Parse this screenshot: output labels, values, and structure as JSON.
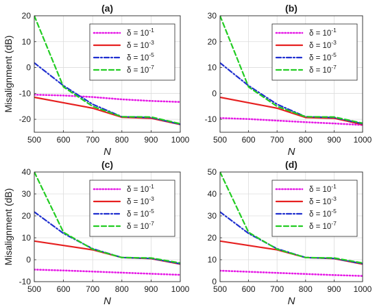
{
  "figure": {
    "legend_prefix": "δ = 10",
    "series_styles": [
      {
        "color": "#e619e6",
        "dash": "1.2 3",
        "width": 2.6
      },
      {
        "color": "#e62020",
        "dash": "",
        "width": 2.2
      },
      {
        "color": "#1f2fcf",
        "dash": "7 3 2 3",
        "width": 2.2
      },
      {
        "color": "#22cc22",
        "dash": "7 4",
        "width": 2.2
      }
    ]
  },
  "chart_data": [
    {
      "type": "line",
      "title": "(a)",
      "xlabel": "N",
      "ylabel": "Misalignment (dB)",
      "xlim": [
        500,
        1000
      ],
      "ylim": [
        -25,
        20
      ],
      "xticks": [
        500,
        600,
        700,
        800,
        900,
        1000
      ],
      "yticks": [
        -20,
        -10,
        0,
        10,
        20
      ],
      "grid": true,
      "legend": "top-right",
      "x": [
        500,
        600,
        700,
        800,
        900,
        1000
      ],
      "series": [
        {
          "name": "δ = 10^-1",
          "exponent": "-1",
          "values": [
            -10.5,
            -10.8,
            -11.4,
            -12.3,
            -12.9,
            -13.3
          ]
        },
        {
          "name": "δ = 10^-3",
          "exponent": "-3",
          "values": [
            -11.5,
            -13.6,
            -15.7,
            -19.2,
            -19.6,
            -22
          ]
        },
        {
          "name": "δ = 10^-5",
          "exponent": "-5",
          "values": [
            1.8,
            -7,
            -14.2,
            -19,
            -19.3,
            -21.9
          ]
        },
        {
          "name": "δ = 10^-7",
          "exponent": "-7",
          "values": [
            20,
            -7.5,
            -15,
            -19,
            -19.1,
            -21.7
          ]
        }
      ]
    },
    {
      "type": "line",
      "title": "(b)",
      "xlabel": "N",
      "ylabel": "",
      "xlim": [
        500,
        1000
      ],
      "ylim": [
        -15,
        30
      ],
      "xticks": [
        500,
        600,
        700,
        800,
        900,
        1000
      ],
      "yticks": [
        -10,
        0,
        10,
        20,
        30
      ],
      "grid": true,
      "legend": "top-right",
      "x": [
        500,
        600,
        700,
        800,
        900,
        1000
      ],
      "series": [
        {
          "name": "δ = 10^-1",
          "exponent": "-1",
          "values": [
            -9.5,
            -9.9,
            -10.5,
            -11.1,
            -11.6,
            -12.2
          ]
        },
        {
          "name": "δ = 10^-3",
          "exponent": "-3",
          "values": [
            -1.5,
            -3.6,
            -5.7,
            -9.3,
            -9.6,
            -12
          ]
        },
        {
          "name": "δ = 10^-5",
          "exponent": "-5",
          "values": [
            11.8,
            3,
            -4.2,
            -9,
            -9.3,
            -11.7
          ]
        },
        {
          "name": "δ = 10^-7",
          "exponent": "-7",
          "values": [
            30,
            2.5,
            -5,
            -9,
            -9.1,
            -11.5
          ]
        }
      ]
    },
    {
      "type": "line",
      "title": "(c)",
      "xlabel": "N",
      "ylabel": "Misalignment (dB)",
      "xlim": [
        500,
        1000
      ],
      "ylim": [
        -10,
        40
      ],
      "xticks": [
        500,
        600,
        700,
        800,
        900,
        1000
      ],
      "yticks": [
        -10,
        0,
        10,
        20,
        30,
        40
      ],
      "grid": true,
      "legend": "top-right",
      "x": [
        500,
        600,
        700,
        800,
        900,
        1000
      ],
      "series": [
        {
          "name": "δ = 10^-1",
          "exponent": "-1",
          "values": [
            -4.5,
            -4.9,
            -5.4,
            -5.9,
            -6.4,
            -6.9
          ]
        },
        {
          "name": "δ = 10^-3",
          "exponent": "-3",
          "values": [
            8.5,
            6.5,
            4.5,
            1,
            0.5,
            -2
          ]
        },
        {
          "name": "δ = 10^-5",
          "exponent": "-5",
          "values": [
            21.8,
            12,
            5,
            1,
            0.6,
            -1.8
          ]
        },
        {
          "name": "δ = 10^-7",
          "exponent": "-7",
          "values": [
            40,
            12.5,
            4.8,
            1,
            0.8,
            -1.5
          ]
        }
      ]
    },
    {
      "type": "line",
      "title": "(d)",
      "xlabel": "N",
      "ylabel": "",
      "xlim": [
        500,
        1000
      ],
      "ylim": [
        0,
        50
      ],
      "xticks": [
        500,
        600,
        700,
        800,
        900,
        1000
      ],
      "yticks": [
        0,
        10,
        20,
        30,
        40,
        50
      ],
      "grid": true,
      "legend": "top-right",
      "x": [
        500,
        600,
        700,
        800,
        900,
        1000
      ],
      "series": [
        {
          "name": "δ = 10^-1",
          "exponent": "-1",
          "values": [
            5,
            4.5,
            4,
            3.5,
            3,
            2.6
          ]
        },
        {
          "name": "δ = 10^-3",
          "exponent": "-3",
          "values": [
            18.5,
            16.5,
            14.5,
            11,
            10.5,
            8
          ]
        },
        {
          "name": "δ = 10^-5",
          "exponent": "-5",
          "values": [
            31.8,
            22,
            15,
            11,
            10.6,
            8.2
          ]
        },
        {
          "name": "δ = 10^-7",
          "exponent": "-7",
          "values": [
            50,
            22.5,
            14.8,
            11,
            10.8,
            8.5
          ]
        }
      ]
    }
  ]
}
